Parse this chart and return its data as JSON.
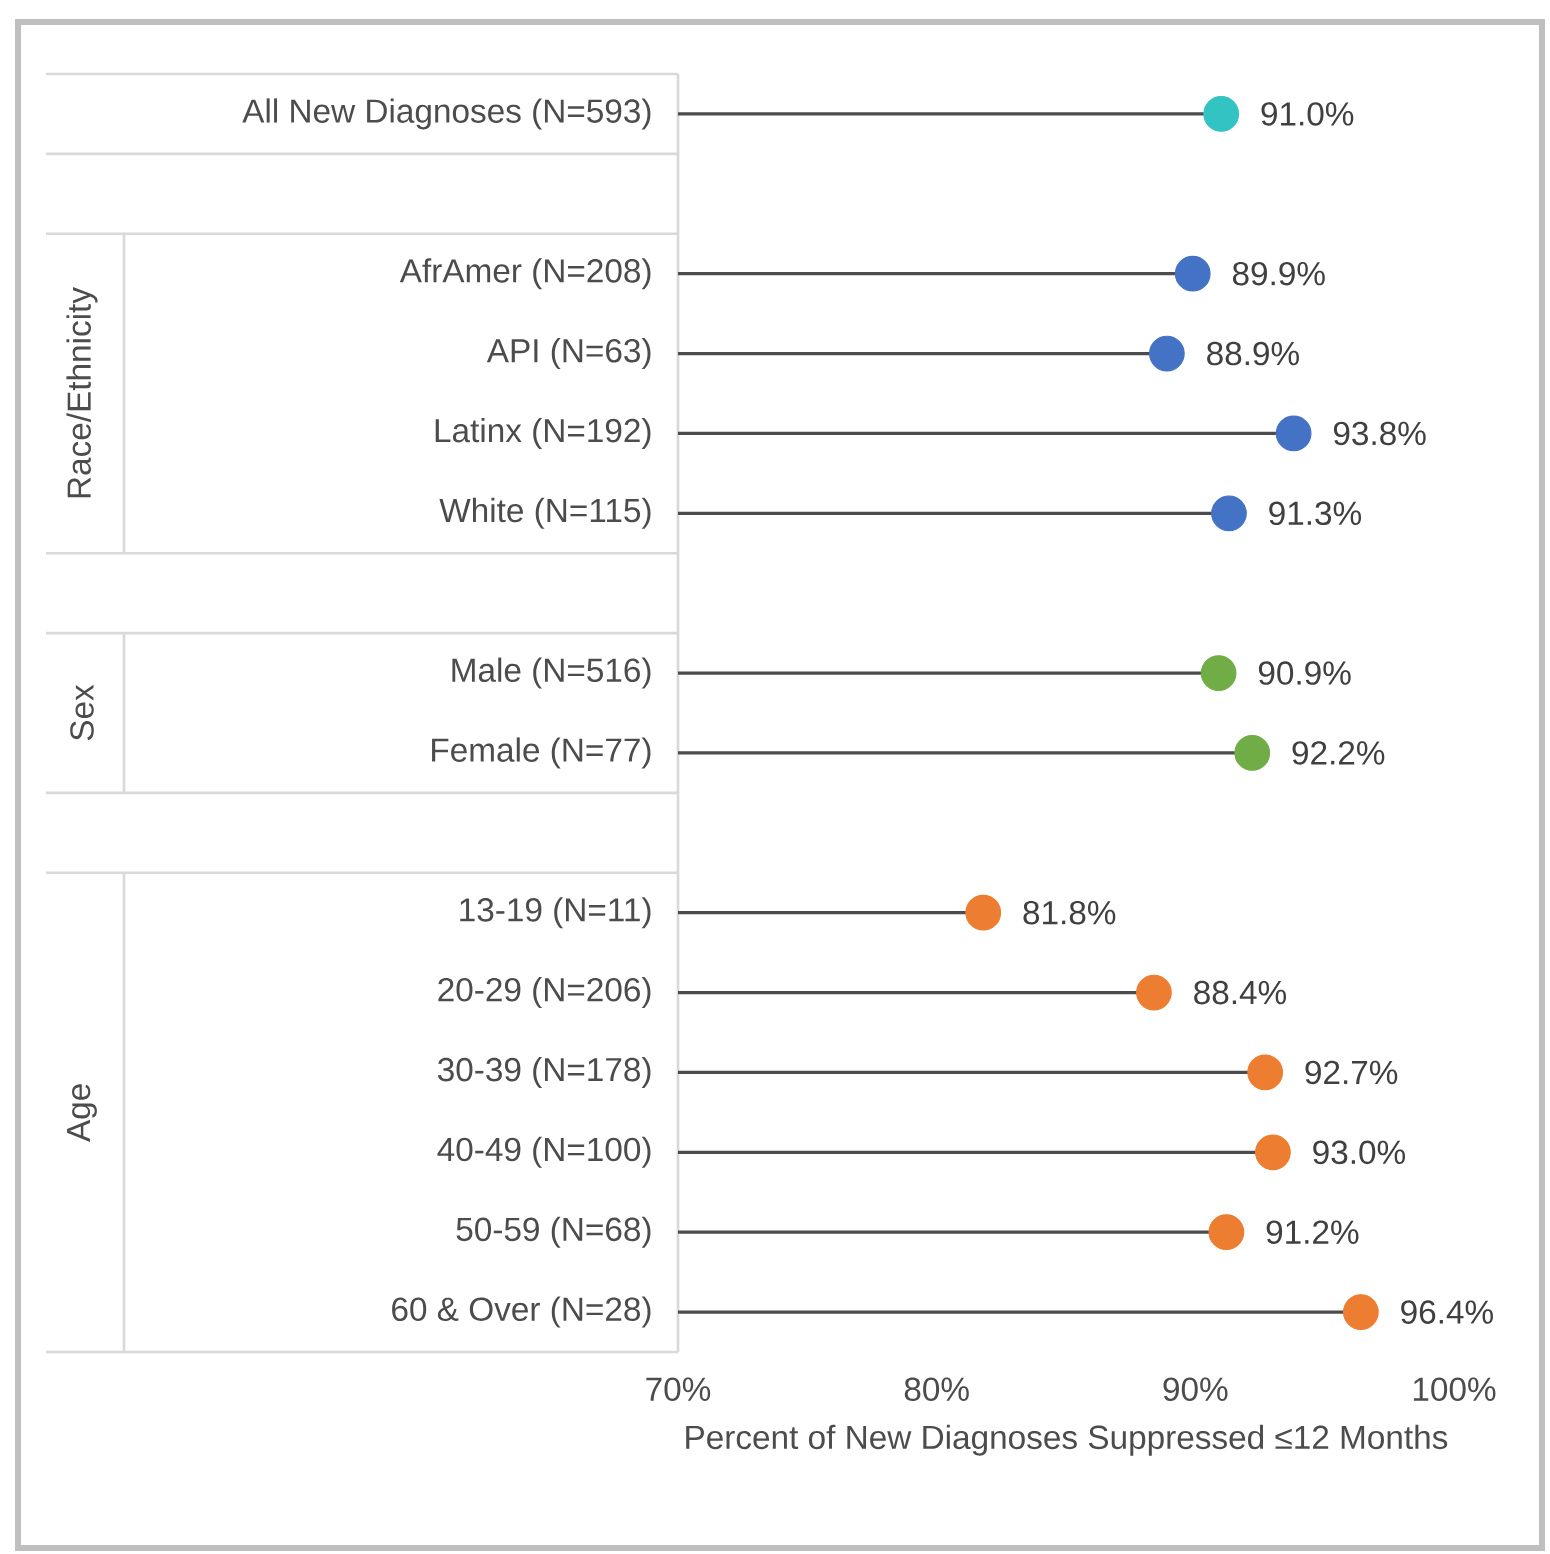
{
  "chart_data": {
    "type": "lollipop",
    "orientation": "horizontal",
    "xlabel": "Percent of New Diagnoses Suppressed ≤12 Months",
    "categories": [
      "All New Diagnoses (N=593)",
      null,
      "AfrAmer (N=208)",
      "API (N=63)",
      "Latinx (N=192)",
      "White (N=115)",
      null,
      "Male (N=516)",
      "Female (N=77)",
      null,
      "13-19 (N=11)",
      "20-29 (N=206)",
      "30-39 (N=178)",
      "40-49 (N=100)",
      "50-59 (N=68)",
      "60 & Over (N=28)"
    ],
    "values": [
      91.0,
      null,
      89.9,
      88.9,
      93.8,
      91.3,
      null,
      90.9,
      92.2,
      null,
      81.8,
      88.4,
      92.7,
      93.0,
      91.2,
      96.4
    ],
    "value_labels": [
      "91.0%",
      null,
      "89.9%",
      "88.9%",
      "93.8%",
      "91.3%",
      null,
      "90.9%",
      "92.2%",
      null,
      "81.8%",
      "88.4%",
      "92.7%",
      "93.0%",
      "91.2%",
      "96.4%"
    ],
    "colors": [
      "#33c3c3",
      null,
      "#4472c4",
      "#4472c4",
      "#4472c4",
      "#4472c4",
      null,
      "#70ad47",
      "#70ad47",
      null,
      "#ed7d31",
      "#ed7d31",
      "#ed7d31",
      "#ed7d31",
      "#ed7d31",
      "#ed7d31"
    ],
    "annotations": [
      "Race/Ethnicity",
      "Sex",
      "Age"
    ],
    "xlim": [
      70,
      100
    ],
    "xticks": [
      {
        "value": 70,
        "label": "70%"
      },
      {
        "value": 80,
        "label": "80%"
      },
      {
        "value": 90,
        "label": "90%"
      },
      {
        "value": 100,
        "label": "100%"
      }
    ],
    "marker": "circle"
  }
}
